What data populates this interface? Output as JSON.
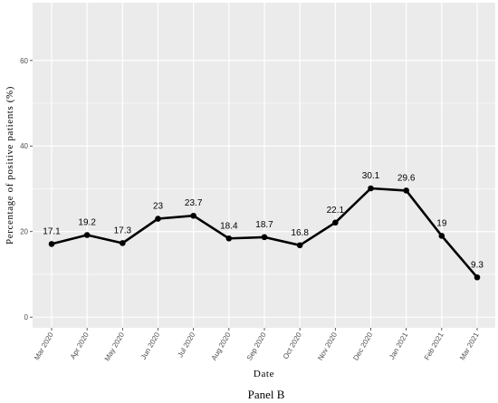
{
  "chart_data": {
    "type": "line",
    "categories": [
      "Mar 2020",
      "Apr 2020",
      "May 2020",
      "Jun 2020",
      "Jul 2020",
      "Aug 2020",
      "Sep 2020",
      "Oct 2020",
      "Nov 2020",
      "Dec 2020",
      "Jan 2021",
      "Feb 2021",
      "Mar 2021"
    ],
    "values": [
      17.1,
      19.2,
      17.3,
      23,
      23.7,
      18.4,
      18.7,
      16.8,
      22.1,
      30.1,
      29.6,
      19,
      9.3
    ],
    "data_labels": [
      "17.1",
      "19.2",
      "17.3",
      "23",
      "23.7",
      "18.4",
      "18.7",
      "16.8",
      "22.1",
      "30.1",
      "29.6",
      "19",
      "9.3"
    ],
    "xlabel": "Date",
    "ylabel": "Percentage of positive patients (%)",
    "ylim": [
      -2.5,
      73.5
    ],
    "yticks": [
      0,
      20,
      40,
      60
    ],
    "ytick_labels": [
      "0",
      "20",
      "40",
      "60"
    ],
    "grid": true,
    "panel_background": "#ebebeb",
    "grid_color": "#ffffff",
    "line_color": "#000000"
  },
  "caption": "Panel B"
}
